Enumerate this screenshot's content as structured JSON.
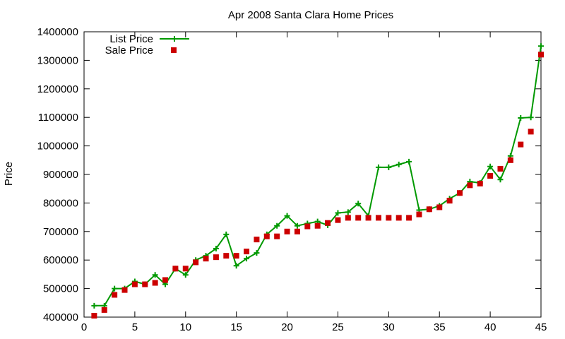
{
  "chart_data": {
    "type": "line",
    "title": "Apr 2008 Santa Clara Home Prices",
    "xlabel": "",
    "ylabel": "Price",
    "xlim": [
      0,
      45
    ],
    "ylim": [
      400000,
      1400000
    ],
    "xticks": [
      0,
      5,
      10,
      15,
      20,
      25,
      30,
      35,
      40,
      45
    ],
    "xtick_labels": [
      "0",
      "5",
      "10",
      "15",
      "20",
      "25",
      "30",
      "35",
      "40",
      "45"
    ],
    "yticks": [
      400000,
      500000,
      600000,
      700000,
      800000,
      900000,
      1000000,
      1100000,
      1200000,
      1300000,
      1400000
    ],
    "ytick_labels": [
      "400000",
      "500000",
      "600000",
      "700000",
      "800000",
      "900000",
      "1000000",
      "1100000",
      "1200000",
      "1300000",
      "1400000"
    ],
    "grid": false,
    "legend_position": "top-left",
    "x": [
      1,
      2,
      3,
      4,
      5,
      6,
      7,
      8,
      9,
      10,
      11,
      12,
      13,
      14,
      15,
      16,
      17,
      18,
      19,
      20,
      21,
      22,
      23,
      24,
      25,
      26,
      27,
      28,
      29,
      30,
      31,
      32,
      33,
      34,
      35,
      36,
      37,
      38,
      39,
      40,
      41,
      42,
      43,
      44,
      45
    ],
    "series": [
      {
        "name": "List Price",
        "style": "line-plus",
        "color": "#009900",
        "values": [
          440000,
          440000,
          500000,
          500000,
          525000,
          515000,
          548000,
          515000,
          570000,
          548000,
          600000,
          615000,
          640000,
          690000,
          580000,
          605000,
          625000,
          690000,
          720000,
          755000,
          720000,
          728000,
          735000,
          722000,
          765000,
          768000,
          798000,
          755000,
          925000,
          925000,
          935000,
          945000,
          775000,
          778000,
          790000,
          815000,
          835000,
          875000,
          870000,
          928000,
          882000,
          965000,
          1098000,
          1100000,
          1350000
        ]
      },
      {
        "name": "Sale Price",
        "style": "square-markers",
        "color": "#cc0000",
        "values": [
          405000,
          425000,
          478000,
          495000,
          515000,
          515000,
          520000,
          530000,
          570000,
          570000,
          592000,
          605000,
          610000,
          615000,
          615000,
          630000,
          672000,
          683000,
          683000,
          700000,
          700000,
          718000,
          720000,
          730000,
          740000,
          748000,
          748000,
          748000,
          748000,
          748000,
          748000,
          748000,
          760000,
          778000,
          785000,
          808000,
          835000,
          862000,
          868000,
          895000,
          920000,
          950000,
          1005000,
          1050000,
          1320000
        ]
      }
    ]
  }
}
